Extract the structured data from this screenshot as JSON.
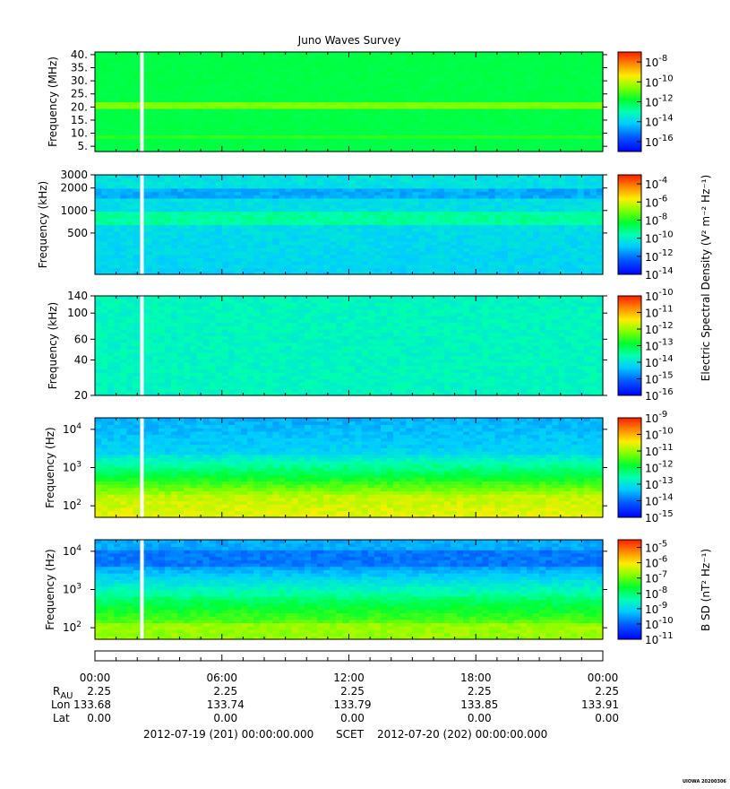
{
  "chart_data": {
    "type": "heatmap",
    "title": "Juno Waves Survey",
    "panels": [
      {
        "id": "hfr-high",
        "ylabel": "Frequency (MHz)",
        "yscale": "linear",
        "ylim": [
          3,
          41
        ],
        "ytick_values": [
          5,
          10,
          15,
          20,
          25,
          30,
          35,
          40
        ],
        "ytick_labels": [
          "5.",
          "10.",
          "15.",
          "20.",
          "25.",
          "30.",
          "35.",
          "40."
        ],
        "colorbar": {
          "exponents": [
            -8,
            -10,
            -12,
            -14,
            -16
          ],
          "min_exp": -17,
          "max_exp": -7
        }
      },
      {
        "id": "hfr-low",
        "ylabel": "Frequency (kHz)",
        "yscale": "log",
        "ylim": [
          140,
          3000
        ],
        "ytick_values": [
          500,
          1000,
          2000,
          3000
        ],
        "ytick_labels": [
          "500",
          "1000",
          "2000",
          "3000"
        ],
        "colorbar": {
          "exponents": [
            -4,
            -6,
            -8,
            -10,
            -12,
            -14
          ],
          "min_exp": -14,
          "max_exp": -3
        }
      },
      {
        "id": "lfr-high",
        "ylabel": "Frequency (kHz)",
        "yscale": "log",
        "ylim": [
          20,
          140
        ],
        "ytick_values": [
          20,
          40,
          60,
          100,
          140
        ],
        "ytick_labels": [
          "20",
          "40",
          "60",
          "100",
          "140"
        ],
        "colorbar": {
          "exponents": [
            -10,
            -11,
            -12,
            -13,
            -14,
            -15,
            -16
          ],
          "min_exp": -16,
          "max_exp": -10
        }
      },
      {
        "id": "lfr-low-e",
        "ylabel": "Frequency (Hz)",
        "yscale": "log",
        "ylim": [
          50,
          20000
        ],
        "ytick_values": [
          100,
          1000,
          10000
        ],
        "ytick_labels": [
          "10",
          "10",
          "10"
        ],
        "ytick_exponents": [
          "2",
          "3",
          "4"
        ],
        "colorbar": {
          "exponents": [
            -9,
            -10,
            -11,
            -12,
            -13,
            -14,
            -15
          ],
          "min_exp": -15,
          "max_exp": -9
        }
      },
      {
        "id": "lfr-low-b",
        "ylabel": "Frequency (Hz)",
        "yscale": "log",
        "ylim": [
          50,
          20000
        ],
        "ytick_values": [
          100,
          1000,
          10000
        ],
        "ytick_labels": [
          "10",
          "10",
          "10"
        ],
        "ytick_exponents": [
          "2",
          "3",
          "4"
        ],
        "colorbar": {
          "exponents": [
            -5,
            -6,
            -7,
            -8,
            -9,
            -10,
            -11
          ],
          "min_exp": -11,
          "max_exp": -4.5
        }
      }
    ],
    "colorbar_labels": {
      "electric": "Electric Spectral Density (V² m⁻² Hz⁻¹)",
      "magnetic": "B SD (nT² Hz⁻¹)"
    },
    "xaxis": {
      "start": "2012-07-19 00:00",
      "end": "2012-07-20 00:00",
      "tick_hours": [
        0,
        6,
        12,
        18,
        24
      ],
      "tick_labels": [
        "00:00",
        "06:00",
        "12:00",
        "18:00",
        "00:00"
      ],
      "data_gap_hour": 2.2
    },
    "ephemeris": {
      "row_labels": [
        "R",
        "Lon",
        "Lat"
      ],
      "r_subscript": "AU",
      "R_AU": [
        "2.25",
        "2.25",
        "2.25",
        "2.25",
        "2.25"
      ],
      "Lon": [
        "133.68",
        "133.74",
        "133.79",
        "133.85",
        "133.91"
      ],
      "Lat": [
        "0.00",
        "0.00",
        "0.00",
        "0.00",
        "0.00"
      ]
    },
    "footer": {
      "start_scet": "2012-07-19 (201) 00:00:00.000",
      "scet_label": "SCET",
      "end_scet": "2012-07-20 (202) 00:00:00.000"
    },
    "stamp": "UIOWA 20200306"
  }
}
